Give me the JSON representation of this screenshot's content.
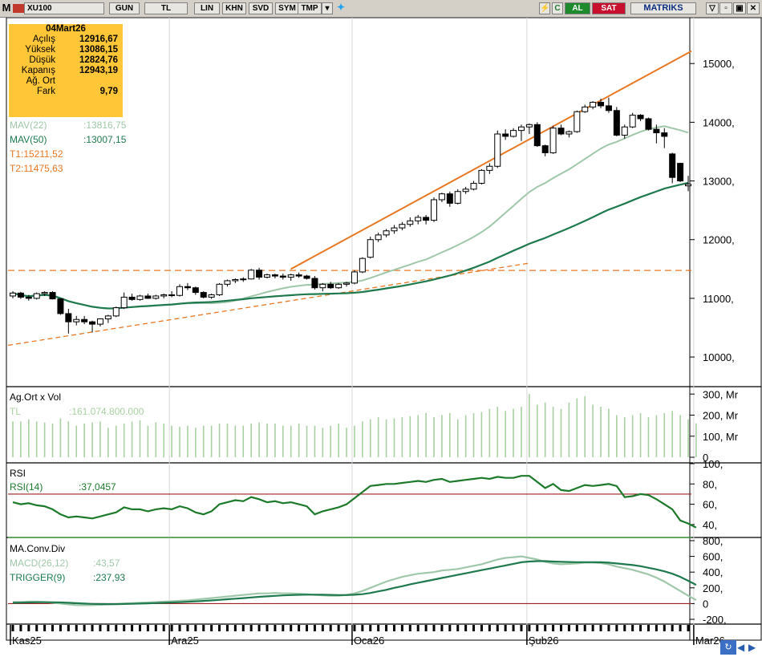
{
  "toolbar": {
    "logo": "M",
    "symbol": "XU100",
    "buttons": [
      "GUN",
      "TL",
      "LIN",
      "KHN",
      "SVD",
      "SYM",
      "TMP"
    ],
    "buy_label": "AL",
    "sell_label": "SAT",
    "brand": "MATRIKS",
    "window_controls": [
      "▽",
      "▫",
      "▣",
      "✕"
    ]
  },
  "colors": {
    "candle_up": "#ffffff",
    "candle_down": "#000000",
    "mav22": "#9fc7a9",
    "mav50": "#1e7a4e",
    "trend": "#e87722",
    "volume_bar": "#a8d0a0",
    "rsi": "#1c7a2a",
    "macd": "#9fc7a9",
    "trigger": "#1e7a4e",
    "ohlc_box": "#ffc637"
  },
  "ohlc": {
    "date": "04Mart26",
    "rows": [
      {
        "label": "Açılış",
        "value": "12916,67"
      },
      {
        "label": "Yüksek",
        "value": "13086,15"
      },
      {
        "label": "Düşük",
        "value": "12824,76"
      },
      {
        "label": "Kapanış",
        "value": "12943,19"
      },
      {
        "label": "Ağ. Ort",
        "value": ""
      },
      {
        "label": "Fark",
        "value": "9,79"
      }
    ]
  },
  "indicators": {
    "mav22_label": "MAV(22)",
    "mav22_value": ":13816,75",
    "mav50_label": "MAV(50)",
    "mav50_value": ":13007,15",
    "t1": "T1:15211,52",
    "t2": "T2:11475,63"
  },
  "volume_panel": {
    "title": "Ag.Ort x Vol",
    "label": "TL",
    "value": ":161.074.800.000"
  },
  "rsi_panel": {
    "title": "RSI",
    "label": "RSI(14)",
    "value": ":37,0457"
  },
  "macd_panel": {
    "title": "MA.Conv.Div",
    "macd_label": "MACD(26,12)",
    "macd_value": ":43,57",
    "trigger_label": "TRIGGER(9)",
    "trigger_value": ":237,93"
  },
  "chart_data": {
    "type": "candlestick",
    "x_labels": [
      "Kas25",
      "Ara25",
      "Oca26",
      "Şub26",
      "Mar26"
    ],
    "x_label_index": [
      0,
      20,
      43,
      65,
      86
    ],
    "price_axis": {
      "ticks": [
        "15000,",
        "14000,",
        "13000,",
        "12000,",
        "11000,",
        "10000,"
      ],
      "tick_values": [
        15000,
        14000,
        13000,
        12000,
        11000,
        10000
      ],
      "range": [
        9550,
        15700
      ]
    },
    "candles": [
      [
        11040,
        11120,
        11000,
        11090
      ],
      [
        11090,
        11110,
        10990,
        11020
      ],
      [
        11020,
        11060,
        10960,
        11000
      ],
      [
        11000,
        11100,
        10980,
        11080
      ],
      [
        11080,
        11120,
        11040,
        11100
      ],
      [
        11100,
        11120,
        10980,
        10990
      ],
      [
        10990,
        11000,
        10720,
        10740
      ],
      [
        10740,
        10820,
        10400,
        10600
      ],
      [
        10600,
        10700,
        10540,
        10640
      ],
      [
        10640,
        10700,
        10560,
        10600
      ],
      [
        10600,
        10620,
        10420,
        10560
      ],
      [
        10560,
        10660,
        10520,
        10650
      ],
      [
        10650,
        10720,
        10580,
        10700
      ],
      [
        10700,
        10860,
        10680,
        10840
      ],
      [
        10840,
        11100,
        10820,
        11020
      ],
      [
        11020,
        11080,
        10960,
        10980
      ],
      [
        10980,
        11060,
        10960,
        11040
      ],
      [
        11040,
        11080,
        10990,
        11000
      ],
      [
        11000,
        11060,
        10980,
        11040
      ],
      [
        11040,
        11080,
        11000,
        11060
      ],
      [
        11060,
        11120,
        11020,
        11050
      ],
      [
        11050,
        11240,
        11030,
        11200
      ],
      [
        11200,
        11260,
        11140,
        11180
      ],
      [
        11180,
        11200,
        11060,
        11100
      ],
      [
        11100,
        11120,
        11000,
        11020
      ],
      [
        11020,
        11080,
        10990,
        11060
      ],
      [
        11060,
        11260,
        11040,
        11240
      ],
      [
        11240,
        11320,
        11200,
        11300
      ],
      [
        11300,
        11340,
        11260,
        11320
      ],
      [
        11320,
        11360,
        11280,
        11330
      ],
      [
        11330,
        11500,
        11320,
        11480
      ],
      [
        11480,
        11520,
        11320,
        11360
      ],
      [
        11360,
        11420,
        11340,
        11400
      ],
      [
        11400,
        11420,
        11340,
        11380
      ],
      [
        11380,
        11420,
        11320,
        11360
      ],
      [
        11360,
        11420,
        11300,
        11400
      ],
      [
        11400,
        11440,
        11350,
        11380
      ],
      [
        11380,
        11400,
        11320,
        11340
      ],
      [
        11340,
        11380,
        11150,
        11180
      ],
      [
        11180,
        11260,
        11120,
        11240
      ],
      [
        11240,
        11280,
        11160,
        11180
      ],
      [
        11180,
        11260,
        11160,
        11240
      ],
      [
        11240,
        11280,
        11200,
        11260
      ],
      [
        11260,
        11480,
        11240,
        11450
      ],
      [
        11450,
        11700,
        11430,
        11680
      ],
      [
        11700,
        12050,
        11680,
        12000
      ],
      [
        12000,
        12120,
        11960,
        12080
      ],
      [
        12080,
        12180,
        12040,
        12150
      ],
      [
        12150,
        12250,
        12100,
        12200
      ],
      [
        12200,
        12300,
        12160,
        12260
      ],
      [
        12260,
        12380,
        12220,
        12320
      ],
      [
        12320,
        12420,
        12260,
        12380
      ],
      [
        12380,
        12420,
        12260,
        12330
      ],
      [
        12330,
        12720,
        12300,
        12680
      ],
      [
        12680,
        12800,
        12640,
        12780
      ],
      [
        12780,
        12820,
        12560,
        12620
      ],
      [
        12620,
        12860,
        12600,
        12820
      ],
      [
        12820,
        12900,
        12780,
        12860
      ],
      [
        12860,
        13000,
        12840,
        12960
      ],
      [
        12960,
        13200,
        12940,
        13180
      ],
      [
        13180,
        13300,
        13120,
        13250
      ],
      [
        13250,
        13860,
        13220,
        13800
      ],
      [
        13800,
        13880,
        13700,
        13760
      ],
      [
        13760,
        13900,
        13740,
        13860
      ],
      [
        13860,
        13960,
        13680,
        13920
      ],
      [
        13920,
        13980,
        13800,
        13960
      ],
      [
        13960,
        14000,
        13580,
        13600
      ],
      [
        13600,
        13620,
        13420,
        13480
      ],
      [
        13480,
        13940,
        13460,
        13900
      ],
      [
        13900,
        13960,
        13780,
        13800
      ],
      [
        13800,
        13860,
        13740,
        13840
      ],
      [
        13840,
        14200,
        13820,
        14180
      ],
      [
        14180,
        14300,
        14160,
        14260
      ],
      [
        14260,
        14360,
        14220,
        14340
      ],
      [
        14340,
        14400,
        14240,
        14280
      ],
      [
        14280,
        14420,
        14160,
        14200
      ],
      [
        14200,
        14260,
        13760,
        13780
      ],
      [
        13780,
        13960,
        13720,
        13920
      ],
      [
        13920,
        14160,
        13900,
        14120
      ],
      [
        14120,
        14140,
        14020,
        14060
      ],
      [
        14060,
        14080,
        13860,
        13880
      ],
      [
        13880,
        13960,
        13640,
        13820
      ],
      [
        13820,
        13900,
        13560,
        13760
      ],
      [
        13460,
        13480,
        12960,
        13060
      ],
      [
        13300,
        13310,
        12980,
        13000
      ],
      [
        12916.67,
        13086.15,
        12824.76,
        12943.19
      ]
    ],
    "volume_axis": {
      "ticks": [
        "300, Mr",
        "200, Mr",
        "100, Mr",
        "0"
      ],
      "tick_values": [
        300,
        200,
        100,
        0
      ]
    },
    "volume": [
      170,
      170,
      180,
      170,
      165,
      160,
      185,
      170,
      150,
      160,
      165,
      170,
      140,
      150,
      160,
      170,
      175,
      150,
      165,
      160,
      150,
      145,
      150,
      140,
      150,
      150,
      160,
      160,
      150,
      150,
      160,
      165,
      160,
      160,
      150,
      150,
      160,
      150,
      150,
      140,
      150,
      160,
      140,
      150,
      170,
      180,
      190,
      180,
      185,
      190,
      195,
      200,
      210,
      190,
      200,
      210,
      180,
      200,
      210,
      215,
      230,
      240,
      220,
      230,
      240,
      300,
      250,
      260,
      240,
      230,
      260,
      280,
      290,
      250,
      240,
      230,
      200,
      190,
      200,
      210,
      190,
      200,
      210,
      220,
      200,
      180,
      161
    ],
    "rsi_axis": {
      "ticks": [
        "100,",
        "80,",
        "60,",
        "40,"
      ],
      "tick_values": [
        100,
        80,
        60,
        40
      ],
      "levels": [
        70,
        30
      ]
    },
    "rsi": [
      62,
      60,
      61,
      59,
      58,
      55,
      50,
      47,
      48,
      47,
      46,
      48,
      50,
      52,
      57,
      55,
      55,
      53,
      55,
      56,
      55,
      58,
      56,
      52,
      50,
      53,
      60,
      62,
      64,
      63,
      67,
      65,
      62,
      63,
      61,
      62,
      60,
      58,
      50,
      53,
      55,
      57,
      60,
      66,
      72,
      78,
      79,
      80,
      80,
      81,
      82,
      83,
      82,
      84,
      85,
      82,
      83,
      84,
      85,
      86,
      85,
      87,
      86,
      86,
      88,
      88,
      82,
      76,
      80,
      74,
      73,
      76,
      79,
      78,
      79,
      80,
      78,
      67,
      68,
      70,
      69,
      65,
      60,
      55,
      44,
      41,
      37
    ],
    "macd_axis": {
      "ticks": [
        "800,",
        "600,",
        "400,",
        "200,",
        "0",
        "-200,"
      ],
      "tick_values": [
        800,
        600,
        400,
        200,
        0,
        -200
      ]
    },
    "macd": [
      20,
      20,
      25,
      25,
      20,
      10,
      0,
      -10,
      -20,
      -20,
      -20,
      -15,
      -10,
      -5,
      0,
      5,
      10,
      15,
      20,
      25,
      30,
      35,
      40,
      50,
      60,
      70,
      80,
      90,
      100,
      110,
      120,
      130,
      130,
      135,
      130,
      130,
      125,
      120,
      110,
      105,
      100,
      100,
      110,
      130,
      160,
      200,
      240,
      280,
      310,
      340,
      360,
      380,
      390,
      400,
      420,
      430,
      440,
      460,
      480,
      500,
      530,
      560,
      580,
      590,
      600,
      580,
      560,
      530,
      510,
      500,
      505,
      510,
      520,
      520,
      515,
      500,
      470,
      450,
      430,
      400,
      370,
      330,
      280,
      220,
      160,
      100,
      43.57
    ],
    "trigger": [
      10,
      12,
      15,
      17,
      18,
      17,
      14,
      10,
      5,
      0,
      -4,
      -6,
      -7,
      -7,
      -5,
      -3,
      0,
      3,
      6,
      10,
      14,
      18,
      23,
      28,
      34,
      40,
      47,
      55,
      62,
      70,
      78,
      86,
      92,
      98,
      104,
      108,
      111,
      113,
      113,
      112,
      110,
      108,
      108,
      112,
      120,
      135,
      155,
      175,
      200,
      220,
      245,
      265,
      285,
      305,
      325,
      345,
      365,
      385,
      405,
      425,
      445,
      465,
      485,
      505,
      525,
      535,
      540,
      540,
      535,
      530,
      528,
      526,
      526,
      526,
      525,
      520,
      510,
      500,
      490,
      475,
      455,
      435,
      410,
      380,
      340,
      290,
      237.93
    ]
  }
}
